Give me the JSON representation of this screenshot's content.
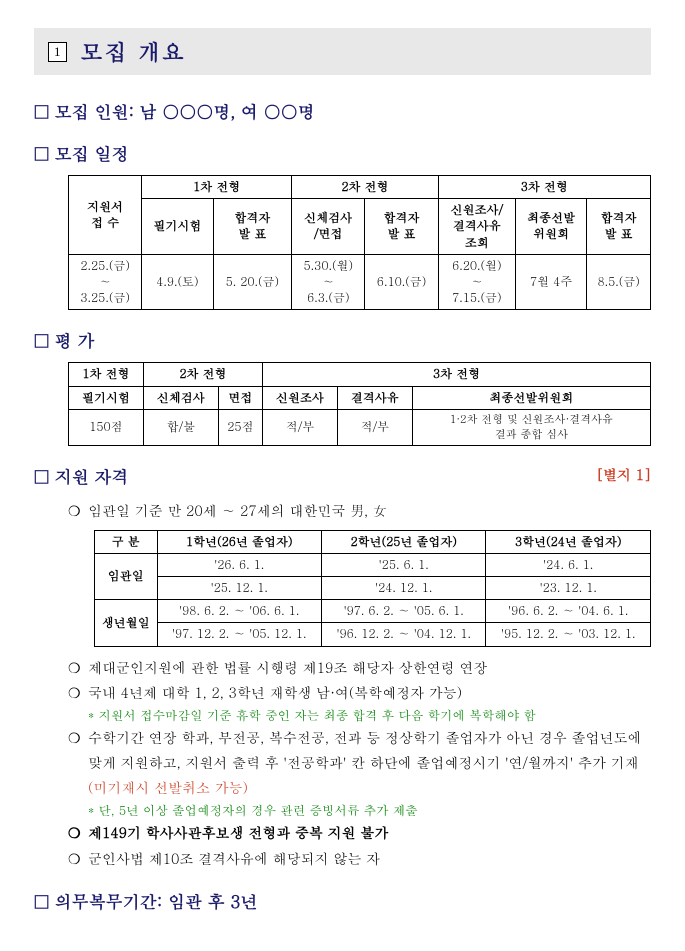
{
  "banner": {
    "num": "1",
    "title": "모집 개요"
  },
  "h_personnel": "□ 모집 인원: 남 ○○○명, 여 ○○명",
  "h_schedule": "□ 모집 일정",
  "schedule": {
    "top": [
      "지원서\n접 수",
      "1차 전형",
      "2차 전형",
      "3차 전형"
    ],
    "sub": [
      "필기시험",
      "합격자\n발 표",
      "신체검사\n/면접",
      "합격자\n발 표",
      "신원조사/\n결격사유\n조회",
      "최종선발\n위원회",
      "합격자\n발 표"
    ],
    "row": [
      "2.25.(금)\n∼\n3.25.(금)",
      "4.9.(토)",
      "5. 20.(금)",
      "5.30.(월)\n∼\n6.3.(금)",
      "6.10.(금)",
      "6.20.(월)\n∼\n7.15.(금)",
      "7월 4주",
      "8.5.(금)"
    ]
  },
  "h_eval": "□ 평        가",
  "eval": {
    "top": [
      "1차 전형",
      "2차 전형",
      "3차 전형"
    ],
    "sub": [
      "필기시험",
      "신체검사",
      "면접",
      "신원조사",
      "결격사유",
      "최종선발위원회"
    ],
    "row": [
      "150점",
      "합/불",
      "25점",
      "적/부",
      "적/부",
      "1·2차 전형 및 신원조사·결격사유\n결과 종합 심사"
    ]
  },
  "h_qual": "□ 지원 자격",
  "ref": "[별지 1]",
  "q_age": "임관일 기준 만 20세 ∼ 27세의 대한민국 男, 女",
  "qual_table": {
    "header": [
      "구  분",
      "1학년(26년 졸업자)",
      "2학년(25년 졸업자)",
      "3학년(24년 졸업자)"
    ],
    "r1_label": "임관일",
    "r1a": [
      "'26. 6. 1.",
      "'25. 6. 1.",
      "'24. 6. 1."
    ],
    "r1b": [
      "'25. 12. 1.",
      "'24. 12. 1.",
      "'23. 12. 1."
    ],
    "r2_label": "생년월일",
    "r2a": [
      "'98. 6. 2. ∼ '06. 6. 1.",
      "'97. 6. 2. ∼ '05. 6. 1.",
      "'96. 6. 2. ∼ '04. 6. 1."
    ],
    "r2b": [
      "'97. 12. 2. ∼ '05. 12. 1.",
      "'96. 12. 2. ∼ '04. 12. 1.",
      "'95. 12. 2. ∼ '03. 12. 1."
    ]
  },
  "bul": {
    "b1": "제대군인지원에 관한 법률 시행령 제19조 해당자 상한연령 연장",
    "b2": "국내 4년제 대학 1, 2, 3학년 재학생 남·여(복학예정자 가능)",
    "b2n": "* 지원서 접수마감일 기준 휴학 중인 자는 최종 합격 후 다음 학기에 복학해야 함",
    "b3a": "수학기간 연장 학과, 부전공, 복수전공, 전과 등 정상학기 졸업자가 아닌 경우 졸업년도에 맞게 지원하고, 지원서 출력 후 '전공학과' 칸 하단에 졸업예정시기 '연/월까지' 추가 기재",
    "b3red": "(미기재시 선발취소 가능)",
    "b3n": "* 단, 5년 이상 졸업예정자의 경우 관련 증빙서류 추가 제출",
    "b4": "제149기 학사사관후보생 전형과 중복 지원 불가",
    "b5": "군인사법 제10조 결격사유에 해당되지 않는 자"
  },
  "h_duty": "□ 의무복무기간: 임관 후 3년"
}
